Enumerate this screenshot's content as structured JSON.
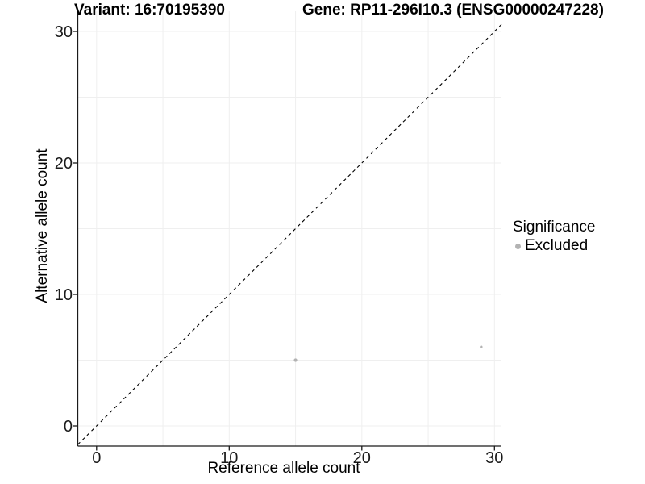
{
  "titles": {
    "left": "Variant: 16:70195390",
    "right": "Gene: RP11-296I10.3 (ENSG00000247228)"
  },
  "chart_data": {
    "type": "scatter",
    "title_left": "Variant: 16:70195390",
    "title_right": "Gene: RP11-296I10.3 (ENSG00000247228)",
    "xlabel": "Reference allele count",
    "ylabel": "Alternative allele count",
    "xlim": [
      -1.5,
      30.5
    ],
    "ylim": [
      -1.5,
      31.5
    ],
    "x_ticks": [
      0,
      10,
      20,
      30
    ],
    "y_ticks": [
      0,
      10,
      20,
      30
    ],
    "x_minor_gridlines": [
      5,
      15,
      25
    ],
    "y_minor_gridlines": [
      5,
      15,
      25
    ],
    "grid": {
      "show": true,
      "color": "#efefef"
    },
    "identity_line": {
      "equation": "y = x",
      "style": "dashed",
      "color": "#000000"
    },
    "series": [
      {
        "name": "Excluded",
        "color": "#b3b3b3",
        "points": [
          {
            "x": 15,
            "y": 5,
            "r": 2.1
          },
          {
            "x": 29,
            "y": 6,
            "r": 1.7
          }
        ]
      }
    ],
    "legend": {
      "title": "Significance",
      "position": "right",
      "entries": [
        {
          "label": "Excluded",
          "color": "#b3b3b3"
        }
      ]
    }
  },
  "colors": {
    "background": "#ffffff",
    "axis_line": "#1a1a1a",
    "tick_label": "#1a1a1a",
    "grid": "#efefef",
    "point": "#b3b3b3"
  }
}
